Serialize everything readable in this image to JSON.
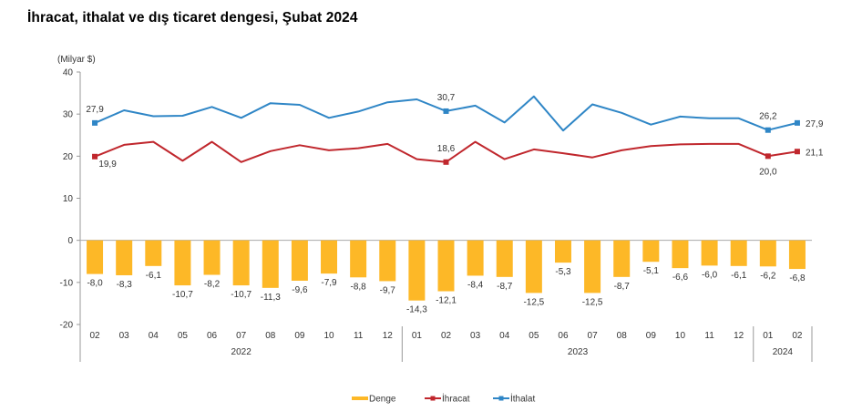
{
  "title": "İhracat, ithalat ve dış ticaret dengesi, Şubat 2024",
  "chart_data": {
    "type": "bar+line",
    "title": "İhracat, ithalat ve dış ticaret dengesi, Şubat 2024",
    "ylabel": "(Milyar $)",
    "xlabel": "",
    "ylim": [
      -20,
      40
    ],
    "yticks": [
      "-20",
      "-10",
      "0",
      "10",
      "20",
      "30",
      "40"
    ],
    "ytick_values": [
      -20,
      -10,
      0,
      10,
      20,
      30,
      40
    ],
    "grid": false,
    "legend_position": "bottom-center",
    "categories": [
      "02",
      "03",
      "04",
      "05",
      "06",
      "07",
      "08",
      "09",
      "10",
      "11",
      "12",
      "01",
      "02",
      "03",
      "04",
      "05",
      "06",
      "07",
      "08",
      "09",
      "10",
      "11",
      "12",
      "01",
      "02"
    ],
    "year_groups": [
      {
        "label": "2022",
        "start": 0,
        "end": 10
      },
      {
        "label": "2023",
        "start": 11,
        "end": 22
      },
      {
        "label": "2024",
        "start": 23,
        "end": 24
      }
    ],
    "series": [
      {
        "name": "Denge",
        "type": "bar",
        "color": "#FDB827",
        "values": [
          -8.0,
          -8.3,
          -6.1,
          -10.7,
          -8.2,
          -10.7,
          -11.3,
          -9.6,
          -7.9,
          -8.8,
          -9.7,
          -14.3,
          -12.1,
          -8.4,
          -8.7,
          -12.5,
          -5.3,
          -12.5,
          -8.7,
          -5.1,
          -6.6,
          -6.0,
          -6.1,
          -6.2,
          -6.8
        ],
        "labels": [
          "-8,0",
          "-8,3",
          "-6,1",
          "-10,7",
          "-8,2",
          "-10,7",
          "-11,3",
          "-9,6",
          "-7,9",
          "-8,8",
          "-9,7",
          "-14,3",
          "-12,1",
          "-8,4",
          "-8,7",
          "-12,5",
          "-5,3",
          "-12,5",
          "-8,7",
          "-5,1",
          "-6,6",
          "-6,0",
          "-6,1",
          "-6,2",
          "-6,8"
        ]
      },
      {
        "name": "İhracat",
        "type": "line",
        "color": "#C0272D",
        "values": [
          19.9,
          22.7,
          23.4,
          18.9,
          23.4,
          18.6,
          21.2,
          22.6,
          21.4,
          21.9,
          22.9,
          19.3,
          18.6,
          23.4,
          19.3,
          21.6,
          20.7,
          19.7,
          21.4,
          22.4,
          22.8,
          22.9,
          22.9,
          20.0,
          21.1
        ],
        "point_labels": [
          {
            "index": 0,
            "text": "19,9",
            "pos": "below-right"
          },
          {
            "index": 12,
            "text": "18,6",
            "pos": "above"
          },
          {
            "index": 23,
            "text": "20,0",
            "pos": "below"
          },
          {
            "index": 24,
            "text": "21,1",
            "pos": "right"
          }
        ]
      },
      {
        "name": "İthalat",
        "type": "line",
        "color": "#2F86C6",
        "values": [
          27.9,
          30.9,
          29.5,
          29.6,
          31.7,
          29.1,
          32.6,
          32.2,
          29.1,
          30.6,
          32.8,
          33.5,
          30.7,
          32.0,
          28.0,
          34.2,
          26.1,
          32.3,
          30.3,
          27.5,
          29.4,
          29.0,
          29.0,
          26.2,
          27.9
        ],
        "point_labels": [
          {
            "index": 0,
            "text": "27,9",
            "pos": "above"
          },
          {
            "index": 12,
            "text": "30,7",
            "pos": "above"
          },
          {
            "index": 23,
            "text": "26,2",
            "pos": "above"
          },
          {
            "index": 24,
            "text": "27,9",
            "pos": "right"
          }
        ]
      }
    ]
  }
}
